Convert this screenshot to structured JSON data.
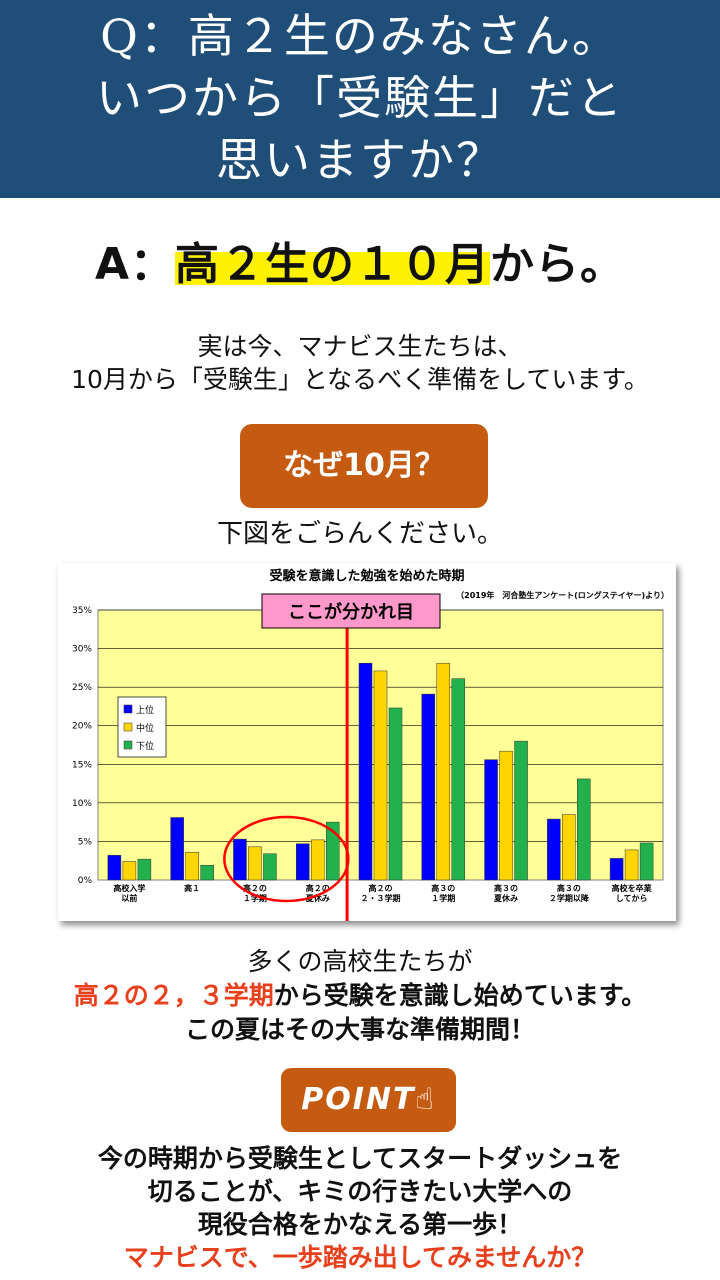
{
  "header": {
    "line1": "Q：高２生のみなさん。",
    "line2": "いつから「受験生」だと",
    "line3": "思いますか？"
  },
  "answer": {
    "prefix": "A：",
    "highlight": "高２生の１０月",
    "suffix": "から。"
  },
  "intro": {
    "line1": "実は今、マナビス生たちは、",
    "line2": "10月から「受験生」となるべく準備をしています。"
  },
  "why_button": "なぜ10月？",
  "see_figure": "下図をごらんください。",
  "chart_data": {
    "type": "bar",
    "title": "受験を意識した勉強を始めた時期",
    "source": "（2019年　河合塾生アンケート(ロングステイヤー)より）",
    "callout": "ここが分かれ目",
    "categories": [
      [
        "高校入学",
        "以前"
      ],
      [
        "高１"
      ],
      [
        "高２の",
        "１学期"
      ],
      [
        "高２の",
        "夏休み"
      ],
      [
        "高２の",
        "２・３学期"
      ],
      [
        "高３の",
        "１学期"
      ],
      [
        "高３の",
        "夏休み"
      ],
      [
        "高３の",
        "２学期以降"
      ],
      [
        "高校を卒業",
        "してから"
      ]
    ],
    "series": [
      {
        "name": "上位",
        "color": "#0000ff",
        "values": [
          3.2,
          8.1,
          5.3,
          4.7,
          28.1,
          24.1,
          15.6,
          7.9,
          2.8
        ]
      },
      {
        "name": "中位",
        "color": "#ffd500",
        "values": [
          2.4,
          3.6,
          4.3,
          5.2,
          27.1,
          28.1,
          16.7,
          8.5,
          3.9
        ]
      },
      {
        "name": "下位",
        "color": "#22b14c",
        "values": [
          2.7,
          1.9,
          3.4,
          7.5,
          22.3,
          26.1,
          18.0,
          13.1,
          4.8
        ]
      }
    ],
    "yticks": [
      "0%",
      "5%",
      "10%",
      "15%",
      "20%",
      "25%",
      "30%",
      "35%"
    ],
    "ylim": [
      0,
      35
    ],
    "divider_after_category": 4,
    "circled_categories": [
      3,
      4
    ],
    "plot_bg": "#ffff99",
    "grid": true,
    "legend_position": "left"
  },
  "body2": {
    "line1": "多くの高校生たちが",
    "line2_red": "高２の２，３学期",
    "line2_rest": "から受験を意識し始めています。",
    "line3": "この夏はその大事な準備期間！"
  },
  "point_button": "POINT",
  "closing": {
    "line1": "今の時期から受験生としてスタートダッシュを",
    "line2": "切ることが、キミの行きたい大学への",
    "line3": "現役合格をかなえる第一歩！",
    "line4": "マナビスで、一歩踏み出してみませんか？"
  },
  "colors": {
    "header_bg": "#1f4e79",
    "button_bg": "#c55a11",
    "highlight": "#fff200",
    "accent_red": "#e8401c"
  }
}
